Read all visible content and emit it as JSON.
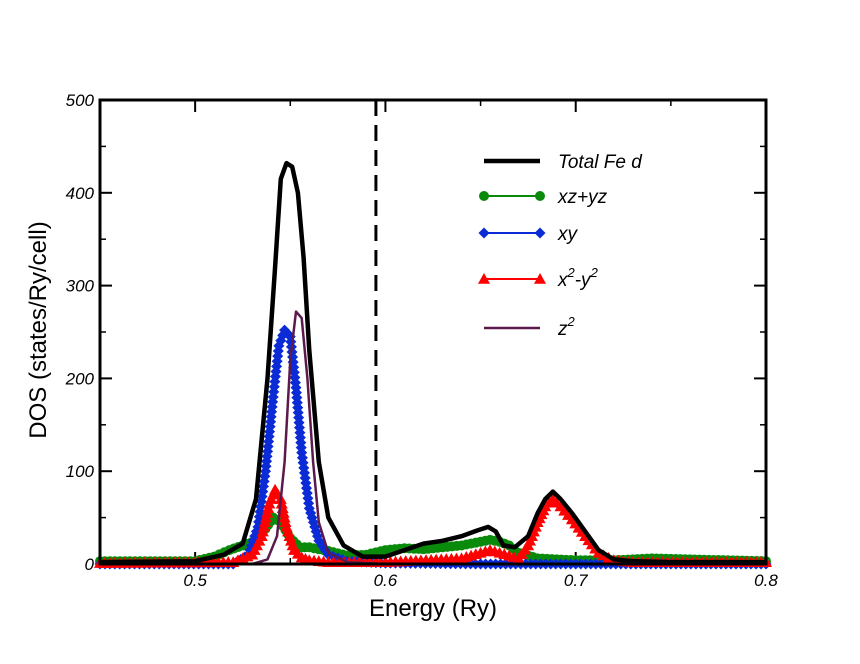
{
  "chart_data": {
    "type": "line",
    "title": "",
    "xlabel": "Energy (Ry)",
    "ylabel": "DOS (states/Ry/cell)",
    "xlim": [
      0.45,
      0.8
    ],
    "ylim": [
      0,
      500
    ],
    "xticks": [
      0.5,
      0.6,
      0.7,
      0.8
    ],
    "xtick_labels": [
      "0.5",
      "0.6",
      "0.7",
      "0.8"
    ],
    "yticks": [
      0,
      100,
      200,
      300,
      400,
      500
    ],
    "ytick_labels": [
      "0",
      "100",
      "200",
      "300",
      "400",
      "500"
    ],
    "fermi_level": 0.595,
    "legend_position": "top-right",
    "series": [
      {
        "name": "Total Fe d",
        "label_parts": [
          "Total Fe d"
        ],
        "color": "#000000",
        "marker": "none",
        "x": [
          0.45,
          0.5,
          0.515,
          0.525,
          0.532,
          0.538,
          0.542,
          0.545,
          0.548,
          0.551,
          0.554,
          0.557,
          0.56,
          0.565,
          0.57,
          0.578,
          0.588,
          0.6,
          0.61,
          0.62,
          0.63,
          0.64,
          0.648,
          0.654,
          0.658,
          0.662,
          0.668,
          0.675,
          0.68,
          0.684,
          0.688,
          0.692,
          0.698,
          0.705,
          0.712,
          0.72,
          0.73,
          0.75,
          0.8
        ],
        "values": [
          2,
          3,
          10,
          22,
          70,
          200,
          320,
          415,
          432,
          428,
          400,
          330,
          230,
          110,
          50,
          20,
          8,
          8,
          15,
          22,
          25,
          30,
          36,
          40,
          35,
          20,
          18,
          30,
          55,
          70,
          78,
          70,
          55,
          35,
          15,
          5,
          3,
          2,
          2
        ]
      },
      {
        "name": "xz+yz",
        "label_parts": [
          "xz+yz"
        ],
        "color": "#0a8a0a",
        "marker": "circle",
        "x": [
          0.45,
          0.5,
          0.51,
          0.518,
          0.525,
          0.532,
          0.537,
          0.541,
          0.545,
          0.55,
          0.555,
          0.56,
          0.57,
          0.58,
          0.59,
          0.6,
          0.61,
          0.62,
          0.63,
          0.64,
          0.65,
          0.655,
          0.66,
          0.665,
          0.67,
          0.68,
          0.69,
          0.7,
          0.72,
          0.74,
          0.76,
          0.78,
          0.8
        ],
        "values": [
          3,
          3,
          8,
          15,
          20,
          25,
          38,
          50,
          45,
          28,
          18,
          18,
          14,
          9,
          10,
          15,
          17,
          16,
          18,
          20,
          24,
          26,
          24,
          20,
          12,
          6,
          5,
          4,
          4,
          6,
          5,
          4,
          3
        ]
      },
      {
        "name": "xy",
        "label_parts": [
          "xy"
        ],
        "color": "#0b2bd6",
        "marker": "diamond",
        "x": [
          0.45,
          0.52,
          0.528,
          0.533,
          0.537,
          0.541,
          0.544,
          0.547,
          0.55,
          0.553,
          0.556,
          0.56,
          0.565,
          0.57,
          0.58,
          0.6,
          0.65,
          0.7,
          0.8
        ],
        "values": [
          0,
          0,
          10,
          40,
          100,
          180,
          235,
          252,
          245,
          190,
          120,
          60,
          25,
          10,
          3,
          1,
          0,
          0,
          0
        ]
      },
      {
        "name": "x2-y2",
        "label_parts": [
          "x",
          "2",
          "-y",
          "2"
        ],
        "color": "#ff0000",
        "marker": "triangle",
        "x": [
          0.45,
          0.52,
          0.53,
          0.535,
          0.539,
          0.542,
          0.545,
          0.548,
          0.552,
          0.556,
          0.56,
          0.57,
          0.6,
          0.64,
          0.65,
          0.655,
          0.66,
          0.67,
          0.675,
          0.68,
          0.684,
          0.688,
          0.692,
          0.698,
          0.705,
          0.712,
          0.72,
          0.73,
          0.8
        ],
        "values": [
          1,
          2,
          10,
          30,
          65,
          80,
          70,
          40,
          15,
          7,
          4,
          2,
          2,
          6,
          12,
          15,
          12,
          6,
          20,
          45,
          62,
          70,
          62,
          48,
          30,
          12,
          4,
          2,
          2
        ]
      },
      {
        "name": "z2",
        "label_parts": [
          "z",
          "2"
        ],
        "color": "#5c1a4c",
        "marker": "none",
        "x": [
          0.45,
          0.53,
          0.538,
          0.543,
          0.547,
          0.55,
          0.553,
          0.556,
          0.559,
          0.562,
          0.565,
          0.57,
          0.58,
          0.6,
          0.8
        ],
        "values": [
          0,
          0,
          5,
          30,
          110,
          220,
          272,
          265,
          200,
          110,
          45,
          12,
          2,
          0,
          0
        ]
      }
    ]
  }
}
